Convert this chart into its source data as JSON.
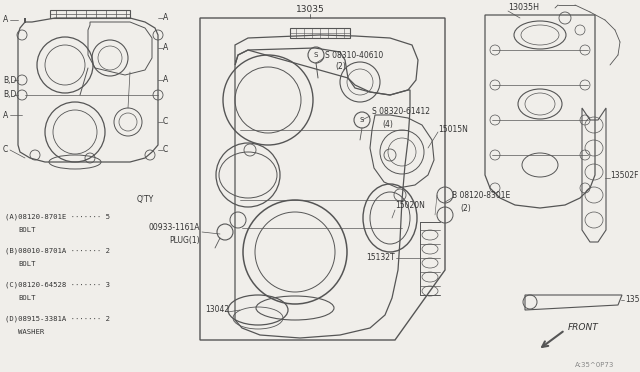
{
  "bg_color": "#f0eeea",
  "line_color": "#555555",
  "text_color": "#333333",
  "diagram_number": "A:35^0P73",
  "bom_items": [
    {
      "key": "A",
      "part": "08120-8701E",
      "desc": "BOLT",
      "qty": "5"
    },
    {
      "key": "B",
      "part": "08010-8701A",
      "desc": "BOLT",
      "qty": "2"
    },
    {
      "key": "C",
      "part": "08120-64528",
      "desc": "BOLT",
      "qty": "3"
    },
    {
      "key": "D",
      "part": "08915-3381A",
      "desc": "WASHER",
      "qty": "2"
    }
  ],
  "bom_header": "Q'TY"
}
